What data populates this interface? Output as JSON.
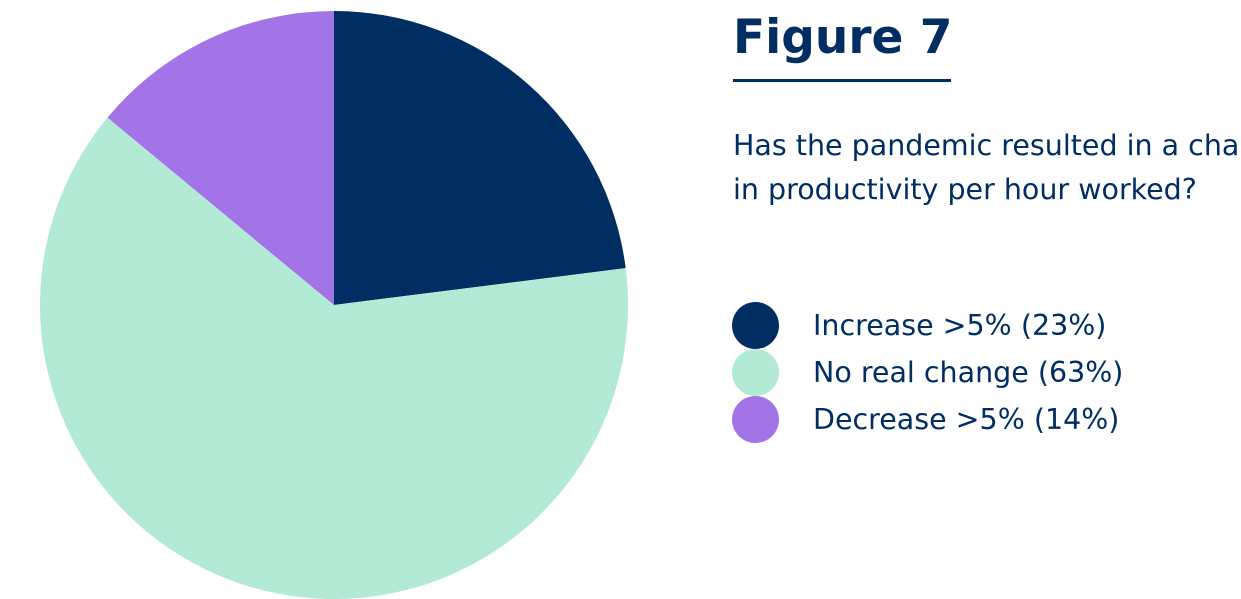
{
  "figure": {
    "title": "Figure 7",
    "question_lines": [
      "Has the pandemic resulted in a change",
      "in productivity per hour worked?"
    ]
  },
  "colors": {
    "text": "#002d62",
    "rule": "#002d62"
  },
  "chart_data": {
    "type": "pie",
    "title": "",
    "start_angle_deg": 0,
    "direction": "clockwise",
    "slices": [
      {
        "label": "Increase >5% (23%)",
        "value": 23,
        "color": "#002d62"
      },
      {
        "label": "No real change (63%)",
        "value": 63,
        "color": "#b2ead5"
      },
      {
        "label": "Decrease >5% (14%)",
        "value": 14,
        "color": "#a373e8"
      }
    ],
    "legend_position": "right",
    "grid": false
  }
}
